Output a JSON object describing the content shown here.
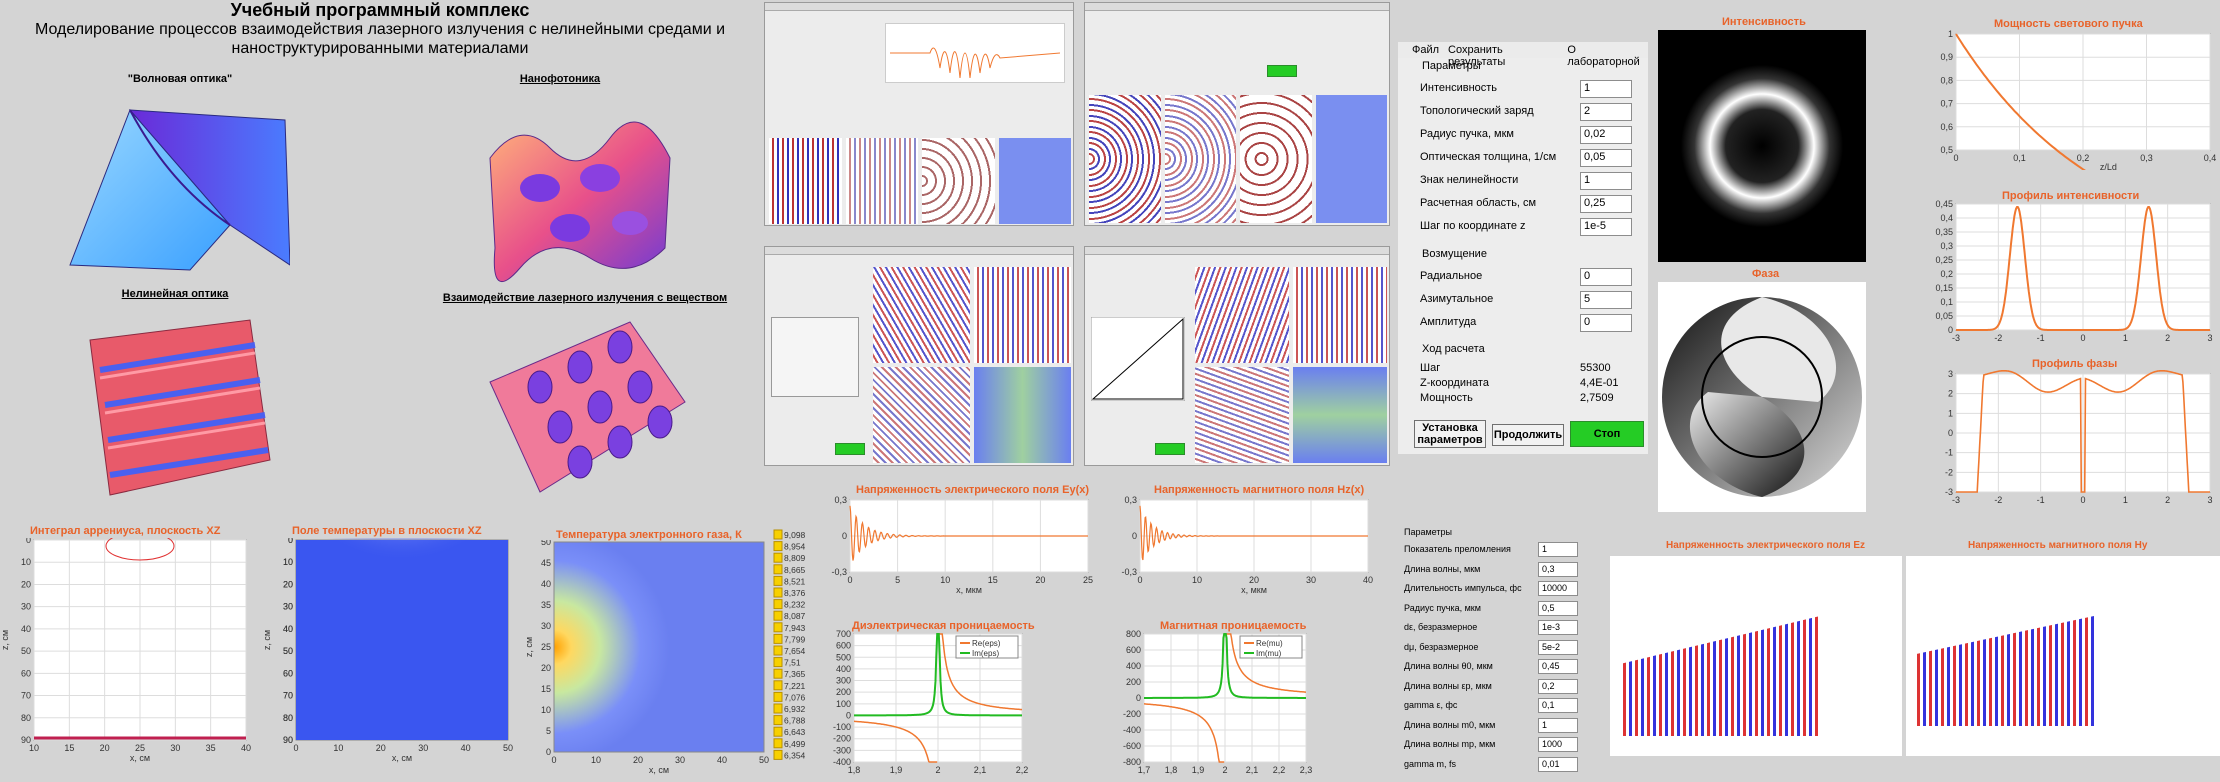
{
  "header": {
    "title": "Учебный программный комплекс",
    "subtitle_line1": "Моделирование процессов взаимодействия лазерного излучения с нелинейными средами и",
    "subtitle_line2": "наноструктурированными материалами"
  },
  "topics": {
    "wave_optics": "\"Волновая оптика\"",
    "nanophotonics": "Нанофотоника",
    "nonlinear_optics": "Нелинейная оптика",
    "interaction": "Взаимодействие лазерного излучения с веществом"
  },
  "bottom_left_charts": {
    "arrhenius": {
      "title": "Интеграл аррениуса, плоскость XZ",
      "xlabel": "x, см",
      "ylabel": "z, см",
      "xticks": [
        "10",
        "15",
        "20",
        "25",
        "30",
        "35",
        "40"
      ],
      "yticks": [
        "0",
        "10",
        "20",
        "30",
        "40",
        "50",
        "60",
        "70",
        "80",
        "90"
      ]
    },
    "temperature_field": {
      "title": "Поле температуры в плоскости XZ",
      "xlabel": "x, см",
      "ylabel": "z, см",
      "xticks": [
        "0",
        "10",
        "20",
        "30",
        "40",
        "50"
      ],
      "yticks": [
        "0",
        "10",
        "20",
        "30",
        "40",
        "50",
        "60",
        "70",
        "80",
        "90"
      ]
    },
    "electron_gas": {
      "title": "Температура электронного газа, К",
      "xlabel": "x, см",
      "ylabel": "z, см",
      "xticks": [
        "0",
        "10",
        "20",
        "30",
        "40",
        "50"
      ],
      "yticks": [
        "0",
        "5",
        "10",
        "15",
        "20",
        "25",
        "30",
        "35",
        "40",
        "45",
        "50"
      ],
      "legend": [
        "9,098",
        "8,954",
        "8,809",
        "8,665",
        "8,521",
        "8,376",
        "8,232",
        "8,087",
        "7,943",
        "7,799",
        "7,654",
        "7,51",
        "7,365",
        "7,221",
        "7,076",
        "6,932",
        "6,788",
        "6,643",
        "6,499",
        "6,354"
      ],
      "legend_color": "#f7d000"
    }
  },
  "field_charts": {
    "ey": {
      "title": "Напряженность электрического поля Ey(x)",
      "xlabel": "x, мкм",
      "yticks": [
        "0,3",
        "0",
        "-0,3"
      ],
      "xticks": [
        "5",
        "10",
        "15",
        "20",
        "25"
      ]
    },
    "hz": {
      "title": "Напряженность магнитного поля Hz(x)",
      "xlabel": "x, мкм",
      "yticks": [
        "0,3",
        "0",
        "-0,3"
      ],
      "xticks": [
        "10",
        "20",
        "30",
        "40"
      ]
    },
    "eps": {
      "title": "Диэлектрическая проницаемость",
      "yticks": [
        "700",
        "600",
        "500",
        "400",
        "300",
        "200",
        "100",
        "0",
        "-100",
        "-200",
        "-300",
        "-400"
      ],
      "xticks": [
        "1,8",
        "1,9",
        "2",
        "2,1",
        "2,2"
      ],
      "legend": [
        "Re(eps)",
        "Im(eps)"
      ]
    },
    "mu": {
      "title": "Магнитная проницаемость",
      "yticks": [
        "800",
        "600",
        "400",
        "200",
        "0",
        "-200",
        "-400",
        "-600",
        "-800"
      ],
      "xticks": [
        "1,7",
        "1,8",
        "1,9",
        "2",
        "2,1",
        "2,2",
        "2,3"
      ],
      "legend": [
        "Re(mu)",
        "Im(mu)"
      ]
    }
  },
  "colors": {
    "accent_orange": "#f07830",
    "green": "#22bb22",
    "title_orange": "#e8632a",
    "stop_green": "#25cc25"
  },
  "app": {
    "menu": [
      "Файл",
      "Сохранить результаты",
      "О лабораторной"
    ],
    "params_header": "Параметры",
    "params": [
      {
        "label": "Интенсивность",
        "value": "1"
      },
      {
        "label": "Топологический заряд",
        "value": "2"
      },
      {
        "label": "Радиус пучка, мкм",
        "value": "0,02"
      },
      {
        "label": "Оптическая толщина, 1/см",
        "value": "0,05"
      },
      {
        "label": "Знак нелинейности",
        "value": "1"
      },
      {
        "label": "Расчетная область, см",
        "value": "0,25"
      },
      {
        "label": "Шаг по координате z",
        "value": "1e-5"
      }
    ],
    "perturb_header": "Возмущение",
    "perturb": [
      {
        "label": "Радиальное",
        "value": "0"
      },
      {
        "label": "Азимутальное",
        "value": "5"
      },
      {
        "label": "Амплитуда",
        "value": "0"
      }
    ],
    "progress_header": "Ход расчета",
    "progress": [
      {
        "label": "Шаг",
        "value": "55300"
      },
      {
        "label": "Z-координата",
        "value": "4,4E-01"
      },
      {
        "label": "Мощность",
        "value": "2,7509"
      }
    ],
    "buttons": {
      "setup": "Установка параметров",
      "continue": "Продолжить",
      "stop": "Стоп"
    }
  },
  "right_charts": {
    "intensity": {
      "title": "Интенсивность"
    },
    "phase": {
      "title": "Фаза"
    },
    "power": {
      "title": "Мощность светового пучка",
      "xlabel": "z/Ld",
      "yticks": [
        "1",
        "0,9",
        "0,8",
        "0,7",
        "0,6",
        "0,5"
      ],
      "xticks": [
        "0",
        "0,1",
        "0,2",
        "0,3",
        "0,4"
      ]
    },
    "int_profile": {
      "title": "Профиль интенсивности",
      "yticks": [
        "0,45",
        "0,4",
        "0,35",
        "0,3",
        "0,25",
        "0,2",
        "0,15",
        "0,1",
        "0,05",
        "0"
      ],
      "xticks": [
        "-3",
        "-2",
        "-1",
        "0",
        "1",
        "2",
        "3"
      ]
    },
    "phase_profile": {
      "title": "Профиль фазы",
      "yticks": [
        "3",
        "2",
        "1",
        "0",
        "-1",
        "-2",
        "-3"
      ],
      "xticks": [
        "-3",
        "-2",
        "-1",
        "0",
        "1",
        "2",
        "3"
      ]
    }
  },
  "bottom_params": {
    "header": "Параметры",
    "rows": [
      {
        "label": "Показатель преломления",
        "value": "1"
      },
      {
        "label": "Длина волны, мкм",
        "value": "0,3"
      },
      {
        "label": "Длительность импульса, фс",
        "value": "10000"
      },
      {
        "label": "Радиус пучка, мкм",
        "value": "0,5"
      },
      {
        "label": "dε, безразмерное",
        "value": "1e-3"
      },
      {
        "label": "dμ, безразмерное",
        "value": "5e-2"
      },
      {
        "label": "Длина волны θ0, мкм",
        "value": "0,45"
      },
      {
        "label": "Длина волны εp, мкм",
        "value": "0,2"
      },
      {
        "label": "gamma ε, фс",
        "value": "0,1"
      },
      {
        "label": "Длина волны m0, мкм",
        "value": "1"
      },
      {
        "label": "Длина волны mp, мкм",
        "value": "1000"
      },
      {
        "label": "gamma m, fs",
        "value": "0,01"
      }
    ]
  },
  "bottom_right": {
    "ez_title": "Напряженность электрического поля Ez",
    "hy_title": "Напряженность магнитного поля Hy"
  }
}
